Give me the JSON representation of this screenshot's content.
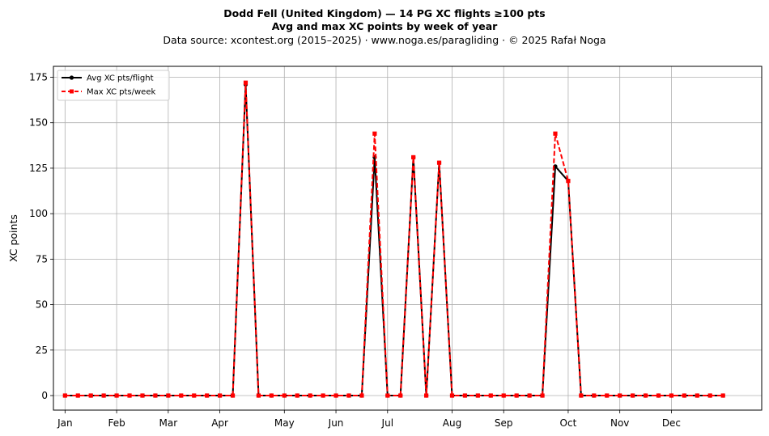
{
  "header": {
    "title_line1": "Dodd Fell (United Kingdom)  —  14 PG XC flights ≥100 pts",
    "title_line2": "Avg and max XC points by week of year",
    "subtitle": "Data source: xcontest.org (2015–2025)  ·  www.noga.es/paragliding  ·  © 2025 Rafał Noga"
  },
  "chart_data": {
    "type": "line",
    "title": "Dodd Fell (United Kingdom)  —  14 PG XC flights ≥100 pts\nAvg and max XC points by week of year",
    "xlabel": "",
    "ylabel": "XC points",
    "x": [
      1,
      2,
      3,
      4,
      5,
      6,
      7,
      8,
      9,
      10,
      11,
      12,
      13,
      14,
      15,
      16,
      17,
      18,
      19,
      20,
      21,
      22,
      23,
      24,
      25,
      26,
      27,
      28,
      29,
      30,
      31,
      32,
      33,
      34,
      35,
      36,
      37,
      38,
      39,
      40,
      41,
      42,
      43,
      44,
      45,
      46,
      47,
      48,
      49,
      50,
      51,
      52
    ],
    "x_tick_labels": [
      "Jan",
      "Feb",
      "Mar",
      "Apr",
      "May",
      "Jun",
      "Jul",
      "Aug",
      "Sep",
      "Oct",
      "Nov",
      "Dec"
    ],
    "x_tick_weeks": [
      1,
      5,
      9,
      13,
      18,
      22,
      26,
      31,
      35,
      40,
      44,
      48
    ],
    "ylim": [
      -8,
      181
    ],
    "y_ticks": [
      0,
      25,
      50,
      75,
      100,
      125,
      150,
      175
    ],
    "grid": true,
    "legend_position": "top-left",
    "series": [
      {
        "name": "Avg XC pts/flight",
        "color": "#000000",
        "style": "solid",
        "marker": "circle",
        "values": [
          0,
          0,
          0,
          0,
          0,
          0,
          0,
          0,
          0,
          0,
          0,
          0,
          0,
          0,
          171,
          0,
          0,
          0,
          0,
          0,
          0,
          0,
          0,
          0,
          131,
          0,
          0,
          131,
          0,
          128,
          0,
          0,
          0,
          0,
          0,
          0,
          0,
          0,
          126,
          118,
          0,
          0,
          0,
          0,
          0,
          0,
          0,
          0,
          0,
          0,
          0,
          0
        ]
      },
      {
        "name": "Max XC pts/week",
        "color": "#ff0000",
        "style": "dashed",
        "marker": "square",
        "values": [
          0,
          0,
          0,
          0,
          0,
          0,
          0,
          0,
          0,
          0,
          0,
          0,
          0,
          0,
          172,
          0,
          0,
          0,
          0,
          0,
          0,
          0,
          0,
          0,
          144,
          0,
          0,
          131,
          0,
          128,
          0,
          0,
          0,
          0,
          0,
          0,
          0,
          0,
          144,
          118,
          0,
          0,
          0,
          0,
          0,
          0,
          0,
          0,
          0,
          0,
          0,
          0
        ]
      }
    ]
  }
}
